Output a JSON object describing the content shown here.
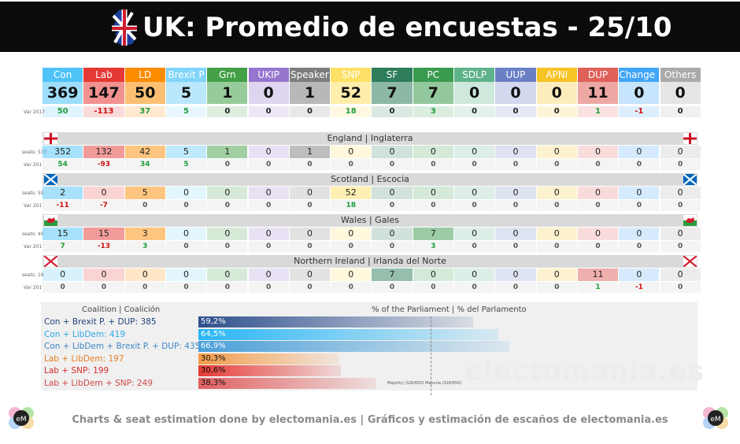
{
  "title": "UK: Promedio de encuestas - 25/10",
  "colors": {
    "Con": "#4fc3f7",
    "Lab": "#e53935",
    "LD": "#fb8c00",
    "Brexit P": "#81d4fa",
    "Grn": "#43a047",
    "UKIP": "#9575cd",
    "Speaker": "#7d7d7d",
    "SNP": "#ffe066",
    "SF": "#2e7d5b",
    "PC": "#3a9a4d",
    "SDLP": "#5fb38a",
    "UUP": "#6a7fc5",
    "APNI": "#f7c325",
    "DUP": "#e0605a",
    "Change UK": "#42a5f5",
    "Others": "#aaaaaa"
  },
  "row_labels": {
    "change": "Var 2017",
    "seats_en": "seats: 533",
    "seats_sc": "seats: 59",
    "seats_wa": "seats: 40",
    "seats_ni": "seats: 18"
  },
  "chart_data": [
    {
      "type": "table",
      "name": "UK",
      "categories": [
        "Con",
        "Lab",
        "LD",
        "Brexit P",
        "Grn",
        "UKIP",
        "Speaker",
        "SNP",
        "SF",
        "PC",
        "SDLP",
        "UUP",
        "APNI",
        "DUP",
        "Change UK",
        "Others"
      ],
      "seats": [
        "369",
        "147",
        "50",
        "5",
        "1",
        "0",
        "1",
        "52",
        "7",
        "7",
        "0",
        "0",
        "0",
        "11",
        "0",
        "0"
      ],
      "change": [
        "50",
        "-113",
        "37",
        "5",
        "0",
        "0",
        "0",
        "18",
        "0",
        "3",
        "0",
        "0",
        "0",
        "1",
        "-1",
        "0"
      ]
    },
    {
      "type": "table",
      "name": "England | Inglaterra",
      "seats": [
        "352",
        "132",
        "42",
        "5",
        "1",
        "0",
        "1",
        "0",
        "0",
        "0",
        "0",
        "0",
        "0",
        "0",
        "0",
        "0"
      ],
      "change": [
        "54",
        "-93",
        "34",
        "5",
        "0",
        "0",
        "0",
        "0",
        "0",
        "0",
        "0",
        "0",
        "0",
        "0",
        "0",
        "0"
      ]
    },
    {
      "type": "table",
      "name": "Scotland | Escocia",
      "seats": [
        "2",
        "0",
        "5",
        "0",
        "0",
        "0",
        "0",
        "52",
        "0",
        "0",
        "0",
        "0",
        "0",
        "0",
        "0",
        "0"
      ],
      "change": [
        "-11",
        "-7",
        "0",
        "0",
        "0",
        "0",
        "0",
        "18",
        "0",
        "0",
        "0",
        "0",
        "0",
        "0",
        "0",
        "0"
      ]
    },
    {
      "type": "table",
      "name": "Wales | Gales",
      "seats": [
        "15",
        "15",
        "3",
        "0",
        "0",
        "0",
        "0",
        "0",
        "0",
        "7",
        "0",
        "0",
        "0",
        "0",
        "0",
        "0"
      ],
      "change": [
        "7",
        "-13",
        "3",
        "0",
        "0",
        "0",
        "0",
        "0",
        "0",
        "3",
        "0",
        "0",
        "0",
        "0",
        "0",
        "0"
      ]
    },
    {
      "type": "table",
      "name": "Northern Ireland | Irlanda del Norte",
      "seats": [
        "0",
        "0",
        "0",
        "0",
        "0",
        "0",
        "0",
        "0",
        "7",
        "0",
        "0",
        "0",
        "0",
        "11",
        "0",
        "0"
      ],
      "change": [
        "0",
        "0",
        "0",
        "0",
        "0",
        "0",
        "0",
        "0",
        "0",
        "0",
        "0",
        "0",
        "0",
        "1",
        "-1",
        "0"
      ]
    },
    {
      "type": "bar",
      "title": "% of the Parliament | % del Parlamento",
      "category_header": "Coalition | Coalición",
      "categories": [
        "Con + Brexit P. + DUP: 385",
        "Con + LibDem: 419",
        "Con + LibDem + Brexit P. + DUP: 435",
        "Lab + LibDem: 197",
        "Lab + SNP: 199",
        "Lab + LibDem + SNP: 249"
      ],
      "value_labels": [
        "59,2%",
        "64,5%",
        "66,9%",
        "30,3%",
        "30,6%",
        "38,3%"
      ],
      "values": [
        59.2,
        64.5,
        66.9,
        30.3,
        30.6,
        38.3
      ],
      "bar_colors": [
        "#2e4f8c",
        "#29b6f6",
        "#4a9fd8",
        "#f39c4a",
        "#e53935",
        "#e06060"
      ],
      "label_colors": [
        "#1f3f7a",
        "#29a8e8",
        "#3f86c6",
        "#e67e22",
        "#d62c2c",
        "#d04848"
      ],
      "xlim": [
        0,
        100
      ],
      "reference_line": {
        "value": 50,
        "label": "Majority (326/650) Mayoría (326/650)"
      }
    }
  ],
  "footer": "Charts & seat estimation done by electomania.es | Gráficos y estimación de escaños de electomania.es",
  "watermark": "electomania.es",
  "logo_text": "eM"
}
